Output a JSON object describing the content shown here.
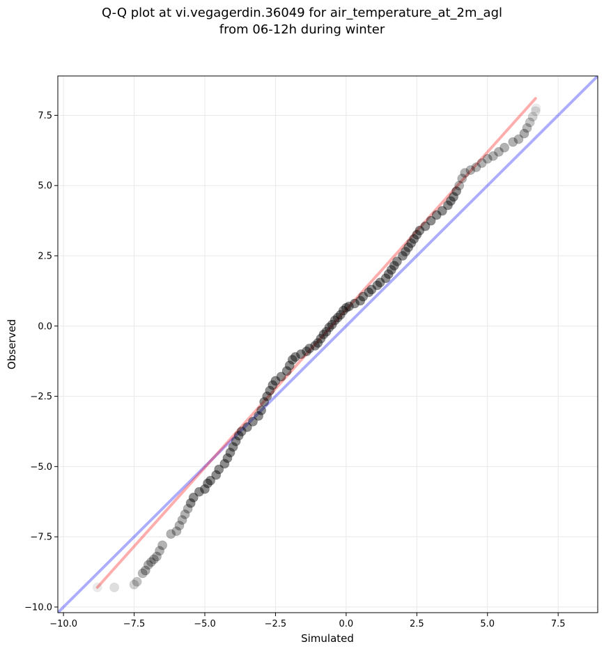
{
  "chart_data": {
    "type": "scatter",
    "title": "Q-Q plot at vi.vegagerdin.36049 for air_temperature_at_2m_agl",
    "subtitle": "from 06-12h during winter",
    "xlabel": "Simulated",
    "ylabel": "Observed",
    "xlim": [
      -10.2,
      8.9
    ],
    "ylim": [
      -10.2,
      8.9
    ],
    "xticks": [
      -10.0,
      -7.5,
      -5.0,
      -2.5,
      0.0,
      2.5,
      5.0,
      7.5
    ],
    "yticks": [
      -10.0,
      -7.5,
      -5.0,
      -2.5,
      0.0,
      2.5,
      5.0,
      7.5
    ],
    "xtick_labels": [
      "−10.0",
      "−7.5",
      "−5.0",
      "−2.5",
      "0.0",
      "2.5",
      "5.0",
      "7.5"
    ],
    "ytick_labels": [
      "−10.0",
      "−7.5",
      "−5.0",
      "−2.5",
      "0.0",
      "2.5",
      "5.0",
      "7.5"
    ],
    "grid": true,
    "colors": {
      "points": "#000000",
      "reference_line": "#0000ff",
      "fit_line": "#ff0000",
      "grid": "#e8e8e8"
    },
    "series": [
      {
        "values": [
          [
            -8.8,
            -9.3
          ],
          [
            -8.2,
            -9.3
          ],
          [
            -7.5,
            -9.2
          ],
          [
            -7.4,
            -9.1
          ],
          [
            -7.2,
            -8.8
          ],
          [
            -7.1,
            -8.7
          ],
          [
            -7.0,
            -8.5
          ],
          [
            -6.9,
            -8.4
          ],
          [
            -6.8,
            -8.3
          ],
          [
            -6.7,
            -8.2
          ],
          [
            -6.6,
            -8.0
          ],
          [
            -6.5,
            -7.8
          ],
          [
            -6.2,
            -7.4
          ],
          [
            -6.0,
            -7.3
          ],
          [
            -5.9,
            -7.1
          ],
          [
            -5.8,
            -6.9
          ],
          [
            -5.7,
            -6.7
          ],
          [
            -5.6,
            -6.5
          ],
          [
            -5.5,
            -6.3
          ],
          [
            -5.4,
            -6.1
          ],
          [
            -5.2,
            -5.9
          ],
          [
            -5.0,
            -5.8
          ],
          [
            -4.9,
            -5.6
          ],
          [
            -4.8,
            -5.5
          ],
          [
            -4.6,
            -5.3
          ],
          [
            -4.5,
            -5.1
          ],
          [
            -4.3,
            -4.9
          ],
          [
            -4.2,
            -4.7
          ],
          [
            -4.1,
            -4.5
          ],
          [
            -4.0,
            -4.3
          ],
          [
            -3.9,
            -4.1
          ],
          [
            -3.8,
            -3.9
          ],
          [
            -3.7,
            -3.75
          ],
          [
            -3.5,
            -3.6
          ],
          [
            -3.3,
            -3.4
          ],
          [
            -3.1,
            -3.2
          ],
          [
            -3.0,
            -3.0
          ],
          [
            -2.9,
            -2.7
          ],
          [
            -2.8,
            -2.5
          ],
          [
            -2.7,
            -2.3
          ],
          [
            -2.6,
            -2.1
          ],
          [
            -2.5,
            -1.95
          ],
          [
            -2.3,
            -1.8
          ],
          [
            -2.1,
            -1.6
          ],
          [
            -2.0,
            -1.4
          ],
          [
            -1.9,
            -1.2
          ],
          [
            -1.8,
            -1.1
          ],
          [
            -1.6,
            -1.0
          ],
          [
            -1.4,
            -0.9
          ],
          [
            -1.3,
            -0.8
          ],
          [
            -1.1,
            -0.7
          ],
          [
            -1.0,
            -0.6
          ],
          [
            -0.9,
            -0.45
          ],
          [
            -0.8,
            -0.3
          ],
          [
            -0.7,
            -0.2
          ],
          [
            -0.6,
            -0.05
          ],
          [
            -0.5,
            0.05
          ],
          [
            -0.4,
            0.2
          ],
          [
            -0.3,
            0.3
          ],
          [
            -0.2,
            0.4
          ],
          [
            -0.1,
            0.55
          ],
          [
            0.0,
            0.65
          ],
          [
            0.1,
            0.7
          ],
          [
            0.3,
            0.8
          ],
          [
            0.5,
            0.9
          ],
          [
            0.6,
            1.05
          ],
          [
            0.8,
            1.2
          ],
          [
            0.9,
            1.3
          ],
          [
            1.1,
            1.45
          ],
          [
            1.2,
            1.55
          ],
          [
            1.4,
            1.7
          ],
          [
            1.5,
            1.85
          ],
          [
            1.6,
            2.0
          ],
          [
            1.7,
            2.15
          ],
          [
            1.8,
            2.3
          ],
          [
            2.0,
            2.5
          ],
          [
            2.1,
            2.65
          ],
          [
            2.2,
            2.8
          ],
          [
            2.3,
            2.95
          ],
          [
            2.4,
            3.1
          ],
          [
            2.5,
            3.25
          ],
          [
            2.6,
            3.4
          ],
          [
            2.8,
            3.55
          ],
          [
            3.0,
            3.75
          ],
          [
            3.2,
            3.95
          ],
          [
            3.4,
            4.1
          ],
          [
            3.6,
            4.3
          ],
          [
            3.7,
            4.45
          ],
          [
            3.8,
            4.6
          ],
          [
            3.9,
            4.8
          ],
          [
            4.0,
            5.0
          ],
          [
            4.1,
            5.25
          ],
          [
            4.2,
            5.45
          ],
          [
            4.4,
            5.55
          ],
          [
            4.6,
            5.65
          ],
          [
            4.8,
            5.8
          ],
          [
            5.0,
            5.95
          ],
          [
            5.2,
            6.05
          ],
          [
            5.4,
            6.2
          ],
          [
            5.6,
            6.35
          ],
          [
            5.9,
            6.55
          ],
          [
            6.1,
            6.65
          ],
          [
            6.3,
            6.85
          ],
          [
            6.4,
            7.05
          ],
          [
            6.5,
            7.25
          ],
          [
            6.6,
            7.45
          ],
          [
            6.7,
            7.65
          ],
          [
            6.72,
            7.75
          ]
        ]
      }
    ],
    "reference_line": {
      "from": [
        -10.2,
        -10.2
      ],
      "to": [
        8.9,
        8.9
      ]
    },
    "fit_line": {
      "from": [
        -8.8,
        -9.3
      ],
      "to": [
        6.7,
        8.1
      ]
    }
  }
}
